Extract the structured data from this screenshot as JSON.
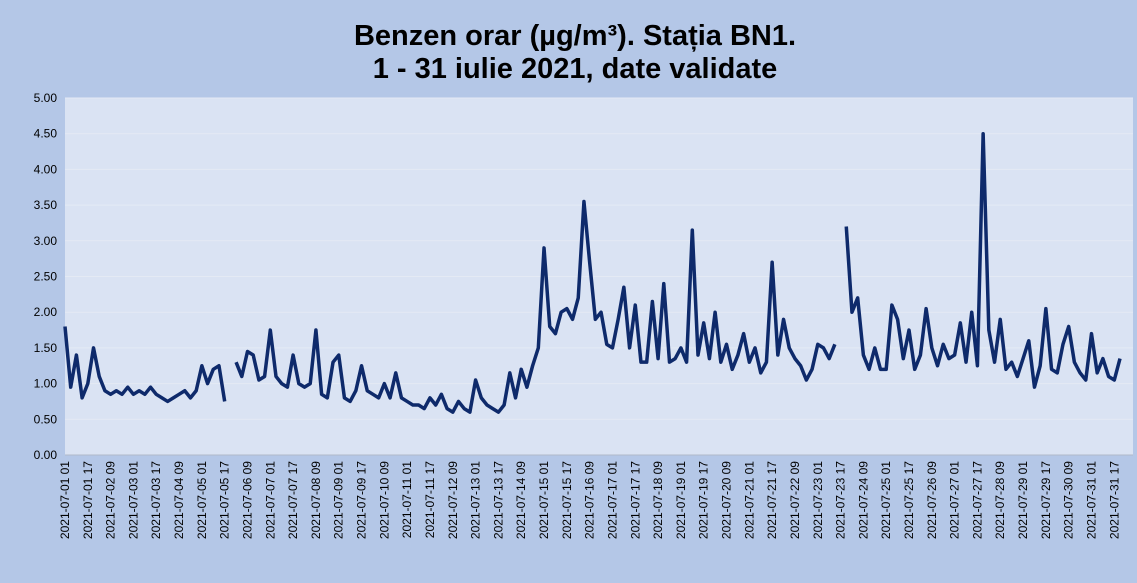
{
  "chart_data": {
    "type": "line",
    "title": [
      "Benzen orar (µg/m³). Stația BN1.",
      "1 - 31 iulie 2021, date validate"
    ],
    "categories": [
      "2021-07-01 01",
      null,
      null,
      null,
      "2021-07-01 17",
      null,
      null,
      null,
      "2021-07-02 09",
      null,
      null,
      null,
      "2021-07-03 01",
      null,
      null,
      null,
      "2021-07-03 17",
      null,
      null,
      null,
      "2021-07-04 09",
      null,
      null,
      null,
      "2021-07-05 01",
      null,
      null,
      null,
      "2021-07-05 17",
      null,
      null,
      null,
      "2021-07-06 09",
      null,
      null,
      null,
      "2021-07-07 01",
      null,
      null,
      null,
      "2021-07-07 17",
      null,
      null,
      null,
      "2021-07-08 09",
      null,
      null,
      null,
      "2021-07-09 01",
      null,
      null,
      null,
      "2021-07-09 17",
      null,
      null,
      null,
      "2021-07-10 09",
      null,
      null,
      null,
      "2021-07-11 01",
      null,
      null,
      null,
      "2021-07-11 17",
      null,
      null,
      null,
      "2021-07-12 09",
      null,
      null,
      null,
      "2021-07-13 01",
      null,
      null,
      null,
      "2021-07-13 17",
      null,
      null,
      null,
      "2021-07-14 09",
      null,
      null,
      null,
      "2021-07-15 01",
      null,
      null,
      null,
      "2021-07-15 17",
      null,
      null,
      null,
      "2021-07-16 09",
      null,
      null,
      null,
      "2021-07-17 01",
      null,
      null,
      null,
      "2021-07-17 17",
      null,
      null,
      null,
      "2021-07-18 09",
      null,
      null,
      null,
      "2021-07-19 01",
      null,
      null,
      null,
      "2021-07-19 17",
      null,
      null,
      null,
      "2021-07-20 09",
      null,
      null,
      null,
      "2021-07-21 01",
      null,
      null,
      null,
      "2021-07-21 17",
      null,
      null,
      null,
      "2021-07-22 09",
      null,
      null,
      null,
      "2021-07-23 01",
      null,
      null,
      null,
      "2021-07-23 17",
      null,
      null,
      null,
      "2021-07-24 09",
      null,
      null,
      null,
      "2021-07-25 01",
      null,
      null,
      null,
      "2021-07-25 17",
      null,
      null,
      null,
      "2021-07-26 09",
      null,
      null,
      null,
      "2021-07-27 01",
      null,
      null,
      null,
      "2021-07-27 17",
      null,
      null,
      null,
      "2021-07-28 09",
      null,
      null,
      null,
      "2021-07-29 01",
      null,
      null,
      null,
      "2021-07-29 17",
      null,
      null,
      null,
      "2021-07-30 09",
      null,
      null,
      null,
      "2021-07-31 01",
      null,
      null,
      null,
      "2021-07-31 17",
      null
    ],
    "series": [
      {
        "color": "#0e2a6b",
        "values": [
          1.8,
          0.95,
          1.4,
          0.8,
          1.0,
          1.5,
          1.1,
          0.9,
          0.85,
          0.9,
          0.85,
          0.95,
          0.85,
          0.9,
          0.85,
          0.95,
          0.85,
          0.8,
          0.75,
          0.8,
          0.85,
          0.9,
          0.8,
          0.9,
          1.25,
          1.0,
          1.2,
          1.25,
          0.75,
          null,
          1.3,
          1.1,
          1.45,
          1.4,
          1.05,
          1.1,
          1.75,
          1.1,
          1.0,
          0.95,
          1.4,
          1.0,
          0.95,
          1.0,
          1.75,
          0.85,
          0.8,
          1.3,
          1.4,
          0.8,
          0.75,
          0.9,
          1.25,
          0.9,
          0.85,
          0.8,
          1.0,
          0.8,
          1.15,
          0.8,
          0.75,
          0.7,
          0.7,
          0.65,
          0.8,
          0.7,
          0.85,
          0.65,
          0.6,
          0.75,
          0.65,
          0.6,
          1.05,
          0.8,
          0.7,
          0.65,
          0.6,
          0.7,
          1.15,
          0.8,
          1.2,
          0.95,
          1.25,
          1.5,
          2.9,
          1.8,
          1.7,
          2.0,
          2.05,
          1.9,
          2.2,
          3.55,
          2.7,
          1.9,
          2.0,
          1.55,
          1.5,
          1.9,
          2.35,
          1.5,
          2.1,
          1.3,
          1.3,
          2.15,
          1.35,
          2.4,
          1.3,
          1.35,
          1.5,
          1.3,
          3.15,
          1.4,
          1.85,
          1.35,
          2.0,
          1.3,
          1.55,
          1.2,
          1.4,
          1.7,
          1.3,
          1.5,
          1.15,
          1.3,
          2.7,
          1.4,
          1.9,
          1.5,
          1.35,
          1.25,
          1.05,
          1.2,
          1.55,
          1.5,
          1.35,
          1.55,
          null,
          3.2,
          2.0,
          2.2,
          1.4,
          1.2,
          1.5,
          1.2,
          1.2,
          2.1,
          1.9,
          1.35,
          1.75,
          1.2,
          1.4,
          2.05,
          1.5,
          1.25,
          1.55,
          1.35,
          1.4,
          1.85,
          1.3,
          2.0,
          1.25,
          4.5,
          1.75,
          1.3,
          1.9,
          1.2,
          1.3,
          1.1,
          1.35,
          1.6,
          0.95,
          1.25,
          2.05,
          1.2,
          1.15,
          1.55,
          1.8,
          1.3,
          1.15,
          1.05,
          1.7,
          1.15,
          1.35,
          1.1,
          1.05,
          1.35
        ]
      }
    ],
    "ylim": [
      0,
      5
    ],
    "yticks": [
      {
        "value": 0,
        "label": "0.00"
      },
      {
        "value": 0.5,
        "label": "0.50"
      },
      {
        "value": 1,
        "label": "1.00"
      },
      {
        "value": 1.5,
        "label": "1.50"
      },
      {
        "value": 2,
        "label": "2.00"
      },
      {
        "value": 2.5,
        "label": "2.50"
      },
      {
        "value": 3,
        "label": "3.00"
      },
      {
        "value": 3.5,
        "label": "3.50"
      },
      {
        "value": 4,
        "label": "4.00"
      },
      {
        "value": 4.5,
        "label": "4.50"
      },
      {
        "value": 5,
        "label": "5.00"
      }
    ],
    "grid": true
  }
}
